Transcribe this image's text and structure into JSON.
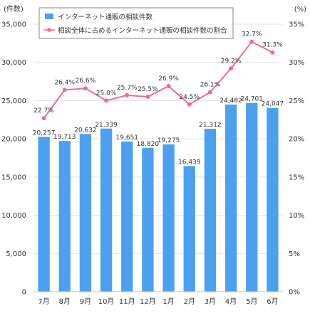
{
  "chart_data": {
    "type": "bar+line",
    "categories": [
      "7月",
      "8月",
      "9月",
      "10月",
      "11月",
      "12月",
      "1月",
      "2月",
      "3月",
      "4月",
      "5月",
      "6月"
    ],
    "series": [
      {
        "name": "インターネット通販の相談件数",
        "type": "bar",
        "axis": "left",
        "color": "#4da0f0",
        "values": [
          20257,
          19713,
          20632,
          21339,
          19651,
          18820,
          19275,
          16439,
          21312,
          24482,
          24701,
          24047
        ],
        "labels": [
          "20,257",
          "19,713",
          "20,632",
          "21,339",
          "19,651",
          "18,820",
          "19,275",
          "16,439",
          "21,312",
          "24,482",
          "24,701",
          "24,047"
        ]
      },
      {
        "name": "相談全体に占めるインターネット通販の相談件数の割合",
        "type": "line",
        "axis": "right",
        "color": "#ea6f8f",
        "values": [
          22.7,
          26.4,
          26.6,
          25.0,
          25.7,
          25.5,
          26.9,
          24.5,
          26.1,
          29.2,
          32.7,
          31.3
        ],
        "labels": [
          "22.7%",
          "26.4%",
          "26.6%",
          "25.0%",
          "25.7%",
          "25.5%",
          "26.9%",
          "24.5%",
          "26.1%",
          "29.2%",
          "32.7%",
          "31.3%"
        ]
      }
    ],
    "left_axis": {
      "unit_label": "(件数)",
      "ylim": [
        0,
        35000
      ],
      "ticks": [
        0,
        5000,
        10000,
        15000,
        20000,
        25000,
        30000,
        35000
      ],
      "tick_labels": [
        "0",
        "5,000",
        "10,000",
        "15,000",
        "20,000",
        "25,000",
        "30,000",
        "35,000"
      ]
    },
    "right_axis": {
      "unit_label": "(%)",
      "ylim": [
        0,
        35
      ],
      "ticks": [
        0,
        5,
        10,
        15,
        20,
        25,
        30,
        35
      ],
      "tick_labels": [
        "0%",
        "5%",
        "10%",
        "15%",
        "20%",
        "25%",
        "30%",
        "35%"
      ]
    },
    "grid": true,
    "legend_position": "top"
  }
}
